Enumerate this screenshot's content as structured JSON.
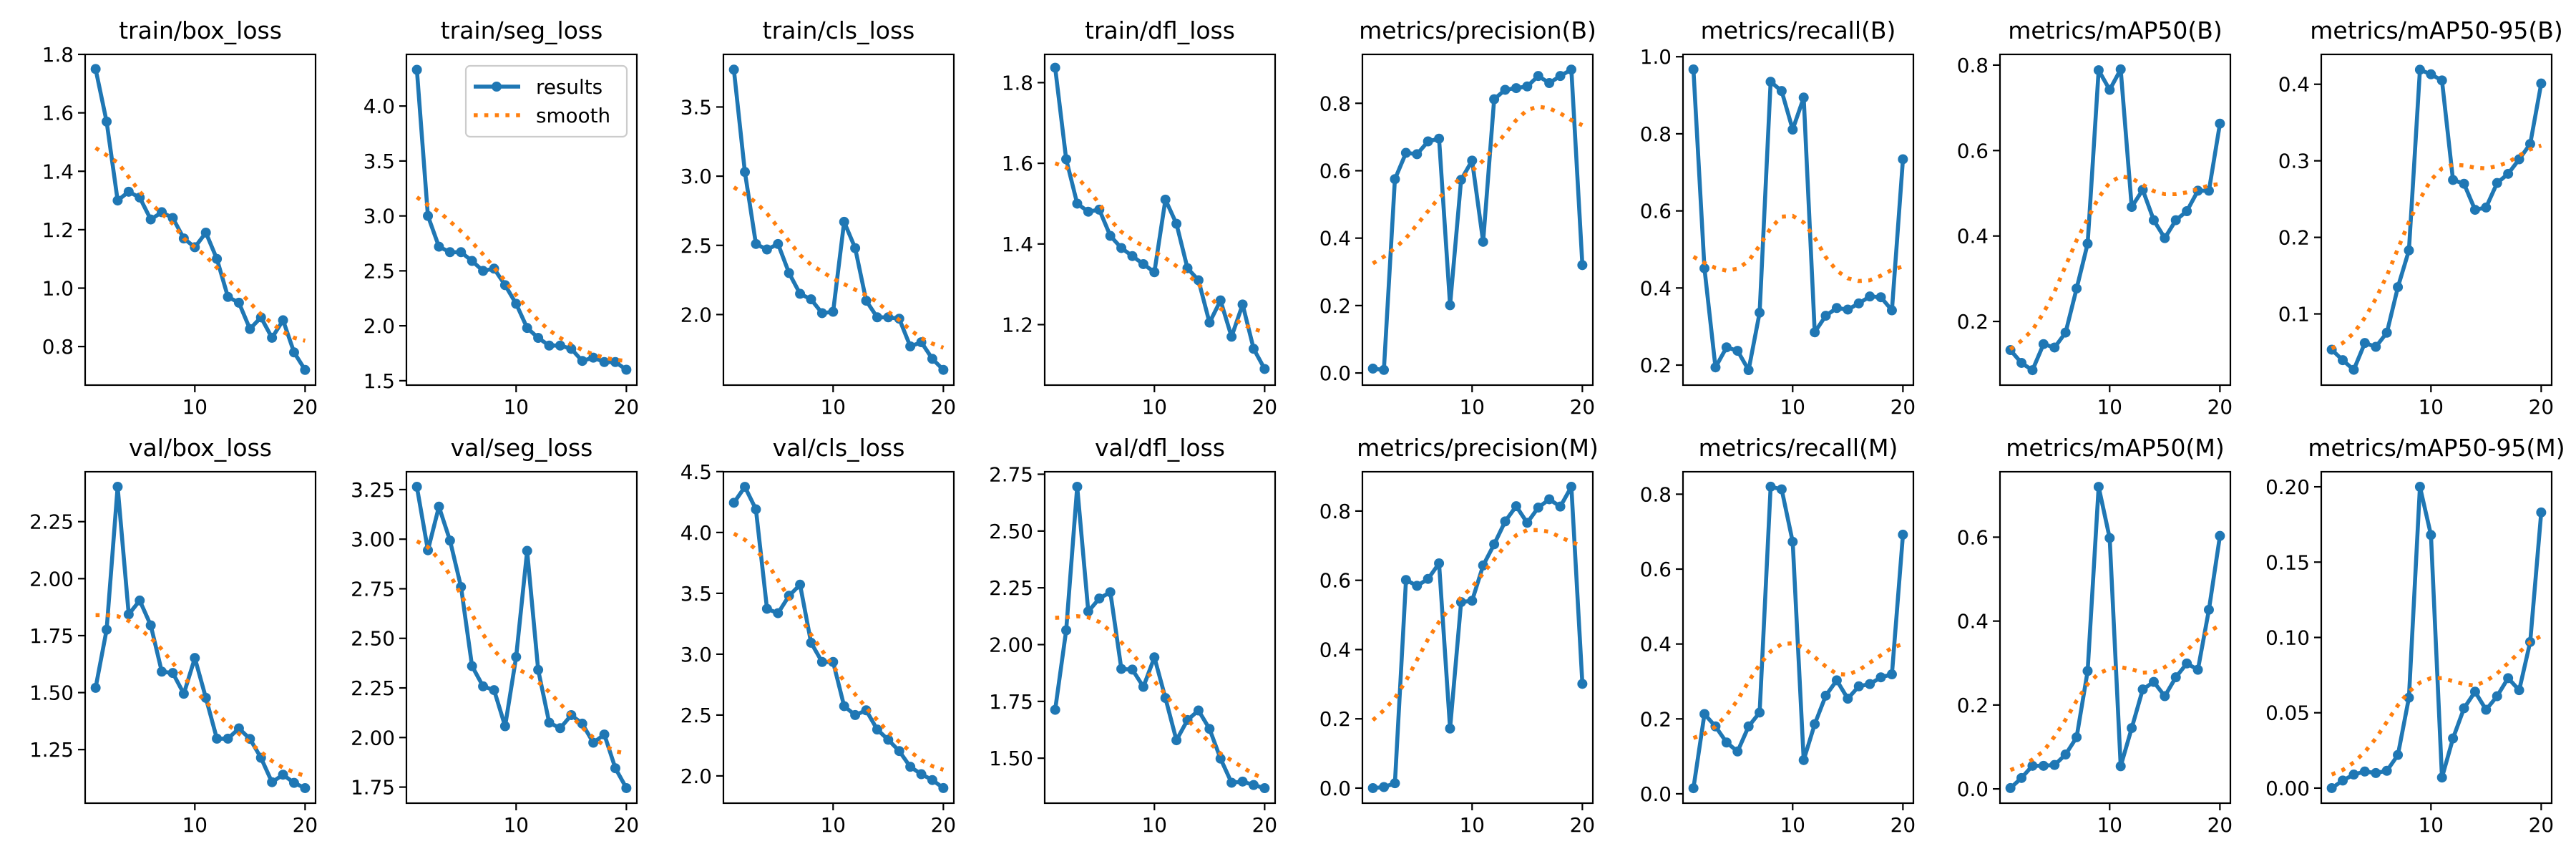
{
  "legend": {
    "results": "results",
    "smooth": "smooth",
    "placement": "upper-right",
    "subplot": "train/seg_loss"
  },
  "colors": {
    "results": "#1f77b4",
    "smooth": "#ff7f0e"
  },
  "chart_data": [
    {
      "type": "line",
      "title": "train/box_loss",
      "x": [
        1,
        2,
        3,
        4,
        5,
        6,
        7,
        8,
        9,
        10,
        11,
        12,
        13,
        14,
        15,
        16,
        17,
        18,
        19,
        20
      ],
      "results": [
        1.75,
        1.57,
        1.3,
        1.33,
        1.31,
        1.235,
        1.26,
        1.24,
        1.17,
        1.14,
        1.19,
        1.1,
        0.97,
        0.95,
        0.86,
        0.9,
        0.83,
        0.89,
        0.78,
        0.72
      ],
      "smooth": [
        1.48,
        1.455,
        1.43,
        1.38,
        1.33,
        1.29,
        1.255,
        1.22,
        1.17,
        1.14,
        1.11,
        1.07,
        1.03,
        0.99,
        0.95,
        0.91,
        0.88,
        0.85,
        0.83,
        0.82
      ],
      "ylim": [
        0.668,
        1.8
      ],
      "yticks": [
        "0.8",
        "1.0",
        "1.2",
        "1.4",
        "1.6",
        "1.8"
      ],
      "xticks": [
        "10",
        "20"
      ],
      "xlim": [
        0.05,
        20.95
      ]
    },
    {
      "type": "line",
      "title": "train/seg_loss",
      "x": [
        1,
        2,
        3,
        4,
        5,
        6,
        7,
        8,
        9,
        10,
        11,
        12,
        13,
        14,
        15,
        16,
        17,
        18,
        19,
        20
      ],
      "results": [
        4.33,
        3.0,
        2.72,
        2.67,
        2.67,
        2.59,
        2.5,
        2.52,
        2.37,
        2.2,
        1.98,
        1.89,
        1.82,
        1.82,
        1.79,
        1.68,
        1.71,
        1.67,
        1.67,
        1.6
      ],
      "smooth": [
        3.17,
        3.1,
        3.04,
        2.95,
        2.86,
        2.76,
        2.65,
        2.53,
        2.41,
        2.28,
        2.16,
        2.05,
        1.96,
        1.89,
        1.83,
        1.78,
        1.74,
        1.71,
        1.69,
        1.68
      ],
      "ylim": [
        1.46,
        4.47
      ],
      "yticks": [
        "1.5",
        "2.0",
        "2.5",
        "3.0",
        "3.5",
        "4.0"
      ],
      "xticks": [
        "10",
        "20"
      ],
      "xlim": [
        0.05,
        20.95
      ]
    },
    {
      "type": "line",
      "title": "train/cls_loss",
      "x": [
        1,
        2,
        3,
        4,
        5,
        6,
        7,
        8,
        9,
        10,
        11,
        12,
        13,
        14,
        15,
        16,
        17,
        18,
        19,
        20
      ],
      "results": [
        3.77,
        3.03,
        2.51,
        2.47,
        2.51,
        2.3,
        2.15,
        2.11,
        2.01,
        2.02,
        2.67,
        2.48,
        2.1,
        1.98,
        1.98,
        1.97,
        1.77,
        1.8,
        1.68,
        1.6
      ],
      "smooth": [
        2.92,
        2.87,
        2.81,
        2.73,
        2.63,
        2.53,
        2.43,
        2.36,
        2.31,
        2.26,
        2.22,
        2.18,
        2.14,
        2.09,
        2.02,
        1.96,
        1.89,
        1.83,
        1.79,
        1.76
      ],
      "ylim": [
        1.49,
        3.88
      ],
      "yticks": [
        "2.0",
        "2.5",
        "3.0",
        "3.5"
      ],
      "xticks": [
        "10",
        "20"
      ],
      "xlim": [
        0.05,
        20.95
      ]
    },
    {
      "type": "line",
      "title": "train/dfl_loss",
      "x": [
        1,
        2,
        3,
        4,
        5,
        6,
        7,
        8,
        9,
        10,
        11,
        12,
        13,
        14,
        15,
        16,
        17,
        18,
        19,
        20
      ],
      "results": [
        1.837,
        1.61,
        1.5,
        1.48,
        1.485,
        1.42,
        1.39,
        1.37,
        1.35,
        1.33,
        1.51,
        1.45,
        1.34,
        1.31,
        1.205,
        1.26,
        1.17,
        1.25,
        1.14,
        1.09
      ],
      "smooth": [
        1.6,
        1.59,
        1.565,
        1.535,
        1.5,
        1.46,
        1.43,
        1.41,
        1.395,
        1.38,
        1.365,
        1.345,
        1.325,
        1.3,
        1.27,
        1.24,
        1.22,
        1.2,
        1.19,
        1.18
      ],
      "ylim": [
        1.05,
        1.87
      ],
      "yticks": [
        "1.2",
        "1.4",
        "1.6",
        "1.8"
      ],
      "xticks": [
        "10",
        "20"
      ],
      "xlim": [
        0.05,
        20.95
      ]
    },
    {
      "type": "line",
      "title": "metrics/precision(B)",
      "x": [
        1,
        2,
        3,
        4,
        5,
        6,
        7,
        8,
        9,
        10,
        11,
        12,
        13,
        14,
        15,
        16,
        17,
        18,
        19,
        20
      ],
      "results": [
        0.013,
        0.009,
        0.575,
        0.653,
        0.649,
        0.687,
        0.695,
        0.201,
        0.573,
        0.63,
        0.389,
        0.812,
        0.84,
        0.845,
        0.85,
        0.881,
        0.86,
        0.881,
        0.9,
        0.32
      ],
      "smooth": [
        0.325,
        0.345,
        0.37,
        0.4,
        0.44,
        0.48,
        0.52,
        0.55,
        0.58,
        0.6,
        0.63,
        0.67,
        0.71,
        0.75,
        0.78,
        0.79,
        0.785,
        0.77,
        0.75,
        0.735
      ],
      "ylim": [
        -0.036,
        0.945
      ],
      "yticks": [
        "0.0",
        "0.2",
        "0.4",
        "0.6",
        "0.8"
      ],
      "xticks": [
        "10",
        "20"
      ],
      "xlim": [
        0.05,
        20.95
      ]
    },
    {
      "type": "line",
      "title": "metrics/recall(B)",
      "x": [
        1,
        2,
        3,
        4,
        5,
        6,
        7,
        8,
        9,
        10,
        11,
        12,
        13,
        14,
        15,
        16,
        17,
        18,
        19,
        20
      ],
      "results": [
        0.967,
        0.451,
        0.194,
        0.246,
        0.237,
        0.187,
        0.336,
        0.935,
        0.911,
        0.811,
        0.894,
        0.285,
        0.328,
        0.348,
        0.344,
        0.36,
        0.378,
        0.376,
        0.342,
        0.734
      ],
      "smooth": [
        0.481,
        0.465,
        0.452,
        0.445,
        0.45,
        0.47,
        0.51,
        0.555,
        0.585,
        0.587,
        0.57,
        0.53,
        0.48,
        0.445,
        0.425,
        0.418,
        0.42,
        0.432,
        0.447,
        0.456
      ],
      "ylim": [
        0.148,
        1.006
      ],
      "yticks": [
        "0.2",
        "0.4",
        "0.6",
        "0.8",
        "1.0"
      ],
      "xticks": [
        "10",
        "20"
      ],
      "xlim": [
        0.05,
        20.95
      ]
    },
    {
      "type": "line",
      "title": "metrics/mAP50(B)",
      "x": [
        1,
        2,
        3,
        4,
        5,
        6,
        7,
        8,
        9,
        10,
        11,
        12,
        13,
        14,
        15,
        16,
        17,
        18,
        19,
        20
      ],
      "results": [
        0.133,
        0.103,
        0.086,
        0.147,
        0.139,
        0.174,
        0.277,
        0.382,
        0.788,
        0.742,
        0.79,
        0.468,
        0.508,
        0.437,
        0.395,
        0.437,
        0.458,
        0.506,
        0.506,
        0.663
      ],
      "smooth": [
        0.135,
        0.155,
        0.18,
        0.22,
        0.27,
        0.33,
        0.39,
        0.44,
        0.49,
        0.525,
        0.54,
        0.535,
        0.52,
        0.505,
        0.498,
        0.498,
        0.502,
        0.51,
        0.518,
        0.522
      ],
      "ylim": [
        0.051,
        0.825
      ],
      "yticks": [
        "0.2",
        "0.4",
        "0.6",
        "0.8"
      ],
      "xticks": [
        "10",
        "20"
      ],
      "xlim": [
        0.05,
        20.95
      ]
    },
    {
      "type": "line",
      "title": "metrics/mAP50-95(B)",
      "x": [
        1,
        2,
        3,
        4,
        5,
        6,
        7,
        8,
        9,
        10,
        11,
        12,
        13,
        14,
        15,
        16,
        17,
        18,
        19,
        20
      ],
      "results": [
        0.0533,
        0.0396,
        0.027,
        0.062,
        0.057,
        0.0755,
        0.135,
        0.183,
        0.419,
        0.413,
        0.405,
        0.275,
        0.27,
        0.236,
        0.239,
        0.271,
        0.283,
        0.302,
        0.322,
        0.401
      ],
      "smooth": [
        0.055,
        0.062,
        0.075,
        0.095,
        0.12,
        0.15,
        0.185,
        0.22,
        0.25,
        0.275,
        0.29,
        0.295,
        0.294,
        0.291,
        0.29,
        0.293,
        0.298,
        0.307,
        0.315,
        0.32
      ],
      "ylim": [
        0.007,
        0.439
      ],
      "yticks": [
        "0.1",
        "0.2",
        "0.3",
        "0.4"
      ],
      "xticks": [
        "10",
        "20"
      ],
      "xlim": [
        0.05,
        20.95
      ]
    },
    {
      "type": "line",
      "title": "val/box_loss",
      "x": [
        1,
        2,
        3,
        4,
        5,
        6,
        7,
        8,
        9,
        10,
        11,
        12,
        13,
        14,
        15,
        16,
        17,
        18,
        19,
        20
      ],
      "results": [
        1.521,
        1.776,
        2.403,
        1.843,
        1.904,
        1.795,
        1.592,
        1.586,
        1.495,
        1.652,
        1.477,
        1.298,
        1.298,
        1.343,
        1.297,
        1.214,
        1.107,
        1.14,
        1.104,
        1.081
      ],
      "smooth": [
        1.84,
        1.84,
        1.835,
        1.815,
        1.78,
        1.74,
        1.69,
        1.63,
        1.57,
        1.51,
        1.46,
        1.41,
        1.36,
        1.32,
        1.28,
        1.24,
        1.2,
        1.17,
        1.15,
        1.135
      ],
      "ylim": [
        1.015,
        2.469
      ],
      "yticks": [
        "1.25",
        "1.50",
        "1.75",
        "2.00",
        "2.25"
      ],
      "xticks": [
        "10",
        "20"
      ],
      "xlim": [
        0.05,
        20.95
      ]
    },
    {
      "type": "line",
      "title": "val/seg_loss",
      "x": [
        1,
        2,
        3,
        4,
        5,
        6,
        7,
        8,
        9,
        10,
        11,
        12,
        13,
        14,
        15,
        16,
        17,
        18,
        19,
        20
      ],
      "results": [
        3.264,
        2.944,
        3.164,
        2.993,
        2.759,
        2.36,
        2.258,
        2.239,
        2.057,
        2.406,
        2.941,
        2.341,
        2.075,
        2.047,
        2.113,
        2.07,
        1.974,
        2.015,
        1.845,
        1.745
      ],
      "smooth": [
        2.99,
        2.96,
        2.9,
        2.82,
        2.72,
        2.62,
        2.52,
        2.44,
        2.38,
        2.35,
        2.32,
        2.28,
        2.23,
        2.17,
        2.11,
        2.05,
        2.0,
        1.96,
        1.93,
        1.92
      ],
      "ylim": [
        1.669,
        3.34
      ],
      "yticks": [
        "1.75",
        "2.00",
        "2.25",
        "2.50",
        "2.75",
        "3.00",
        "3.25"
      ],
      "xticks": [
        "10",
        "20"
      ],
      "xlim": [
        0.05,
        20.95
      ]
    },
    {
      "type": "line",
      "title": "val/cls_loss",
      "x": [
        1,
        2,
        3,
        4,
        5,
        6,
        7,
        8,
        9,
        10,
        11,
        12,
        13,
        14,
        15,
        16,
        17,
        18,
        19,
        20
      ],
      "results": [
        4.244,
        4.375,
        4.19,
        3.373,
        3.337,
        3.48,
        3.571,
        3.094,
        2.936,
        2.936,
        2.573,
        2.5,
        2.539,
        2.381,
        2.297,
        2.204,
        2.075,
        2.014,
        1.966,
        1.9
      ],
      "smooth": [
        3.99,
        3.94,
        3.86,
        3.75,
        3.61,
        3.46,
        3.31,
        3.16,
        3.03,
        2.9,
        2.78,
        2.67,
        2.56,
        2.46,
        2.36,
        2.28,
        2.2,
        2.13,
        2.08,
        2.05
      ],
      "ylim": [
        1.776,
        4.499
      ],
      "yticks": [
        "2.0",
        "2.5",
        "3.0",
        "3.5",
        "4.0",
        "4.5"
      ],
      "xticks": [
        "10",
        "20"
      ],
      "xlim": [
        0.05,
        20.95
      ]
    },
    {
      "type": "line",
      "title": "val/dfl_loss",
      "x": [
        1,
        2,
        3,
        4,
        5,
        6,
        7,
        8,
        9,
        10,
        11,
        12,
        13,
        14,
        15,
        16,
        17,
        18,
        19,
        20
      ],
      "results": [
        1.713,
        2.063,
        2.695,
        2.146,
        2.203,
        2.231,
        1.893,
        1.89,
        1.814,
        1.944,
        1.765,
        1.579,
        1.668,
        1.71,
        1.629,
        1.498,
        1.392,
        1.397,
        1.382,
        1.368
      ],
      "smooth": [
        2.118,
        2.12,
        2.125,
        2.12,
        2.1,
        2.06,
        2.01,
        1.96,
        1.9,
        1.84,
        1.78,
        1.72,
        1.67,
        1.62,
        1.57,
        1.52,
        1.49,
        1.46,
        1.43,
        1.41
      ],
      "ylim": [
        1.302,
        2.761
      ],
      "yticks": [
        "1.50",
        "1.75",
        "2.00",
        "2.25",
        "2.50",
        "2.75"
      ],
      "xticks": [
        "10",
        "20"
      ],
      "xlim": [
        0.05,
        20.95
      ]
    },
    {
      "type": "line",
      "title": "metrics/precision(M)",
      "x": [
        1,
        2,
        3,
        4,
        5,
        6,
        7,
        8,
        9,
        10,
        11,
        12,
        13,
        14,
        15,
        16,
        17,
        18,
        19,
        20
      ],
      "results": [
        0.0,
        0.003,
        0.014,
        0.601,
        0.584,
        0.604,
        0.649,
        0.172,
        0.537,
        0.541,
        0.643,
        0.704,
        0.77,
        0.814,
        0.766,
        0.81,
        0.834,
        0.813,
        0.87,
        0.301
      ],
      "smooth": [
        0.196,
        0.225,
        0.26,
        0.31,
        0.37,
        0.43,
        0.48,
        0.52,
        0.55,
        0.58,
        0.62,
        0.66,
        0.7,
        0.73,
        0.745,
        0.745,
        0.74,
        0.725,
        0.71,
        0.7
      ],
      "ylim": [
        -0.0435,
        0.9135
      ],
      "yticks": [
        "0.0",
        "0.2",
        "0.4",
        "0.6",
        "0.8"
      ],
      "xticks": [
        "10",
        "20"
      ],
      "xlim": [
        0.05,
        20.95
      ]
    },
    {
      "type": "line",
      "title": "metrics/recall(M)",
      "x": [
        1,
        2,
        3,
        4,
        5,
        6,
        7,
        8,
        9,
        10,
        11,
        12,
        13,
        14,
        15,
        16,
        17,
        18,
        19,
        20
      ],
      "results": [
        0.015,
        0.213,
        0.18,
        0.137,
        0.113,
        0.18,
        0.217,
        0.82,
        0.813,
        0.673,
        0.09,
        0.186,
        0.262,
        0.303,
        0.254,
        0.287,
        0.293,
        0.311,
        0.319,
        0.692
      ],
      "smooth": [
        0.149,
        0.16,
        0.18,
        0.21,
        0.25,
        0.3,
        0.345,
        0.38,
        0.4,
        0.402,
        0.39,
        0.365,
        0.34,
        0.32,
        0.318,
        0.33,
        0.35,
        0.37,
        0.39,
        0.4
      ],
      "ylim": [
        -0.025,
        0.86
      ],
      "yticks": [
        "0.0",
        "0.2",
        "0.4",
        "0.6",
        "0.8"
      ],
      "xticks": [
        "10",
        "20"
      ],
      "xlim": [
        0.05,
        20.95
      ]
    },
    {
      "type": "line",
      "title": "metrics/mAP50(M)",
      "x": [
        1,
        2,
        3,
        4,
        5,
        6,
        7,
        8,
        9,
        10,
        11,
        12,
        13,
        14,
        15,
        16,
        17,
        18,
        19,
        20
      ],
      "results": [
        0.002,
        0.026,
        0.055,
        0.055,
        0.057,
        0.082,
        0.123,
        0.281,
        0.72,
        0.598,
        0.054,
        0.145,
        0.237,
        0.255,
        0.221,
        0.266,
        0.299,
        0.284,
        0.427,
        0.603
      ],
      "smooth": [
        0.045,
        0.055,
        0.07,
        0.09,
        0.125,
        0.165,
        0.21,
        0.25,
        0.275,
        0.287,
        0.29,
        0.285,
        0.277,
        0.278,
        0.29,
        0.308,
        0.33,
        0.355,
        0.375,
        0.39
      ],
      "ylim": [
        -0.034,
        0.756
      ],
      "yticks": [
        "0.0",
        "0.2",
        "0.4",
        "0.6"
      ],
      "xticks": [
        "10",
        "20"
      ],
      "xlim": [
        0.05,
        20.95
      ]
    },
    {
      "type": "line",
      "title": "metrics/mAP50-95(M)",
      "x": [
        1,
        2,
        3,
        4,
        5,
        6,
        7,
        8,
        9,
        10,
        11,
        12,
        13,
        14,
        15,
        16,
        17,
        18,
        19,
        20
      ],
      "results": [
        0.0,
        0.005,
        0.009,
        0.011,
        0.01,
        0.0115,
        0.022,
        0.06,
        0.2,
        0.168,
        0.007,
        0.033,
        0.053,
        0.064,
        0.052,
        0.061,
        0.073,
        0.065,
        0.097,
        0.183
      ],
      "smooth": [
        0.009,
        0.012,
        0.017,
        0.024,
        0.033,
        0.044,
        0.055,
        0.064,
        0.07,
        0.073,
        0.073,
        0.071,
        0.069,
        0.068,
        0.071,
        0.076,
        0.083,
        0.09,
        0.097,
        0.101
      ],
      "ylim": [
        -0.01,
        0.21
      ],
      "yticks": [
        "0.00",
        "0.05",
        "0.10",
        "0.15",
        "0.20"
      ],
      "xticks": [
        "10",
        "20"
      ],
      "xlim": [
        0.05,
        20.95
      ]
    }
  ]
}
